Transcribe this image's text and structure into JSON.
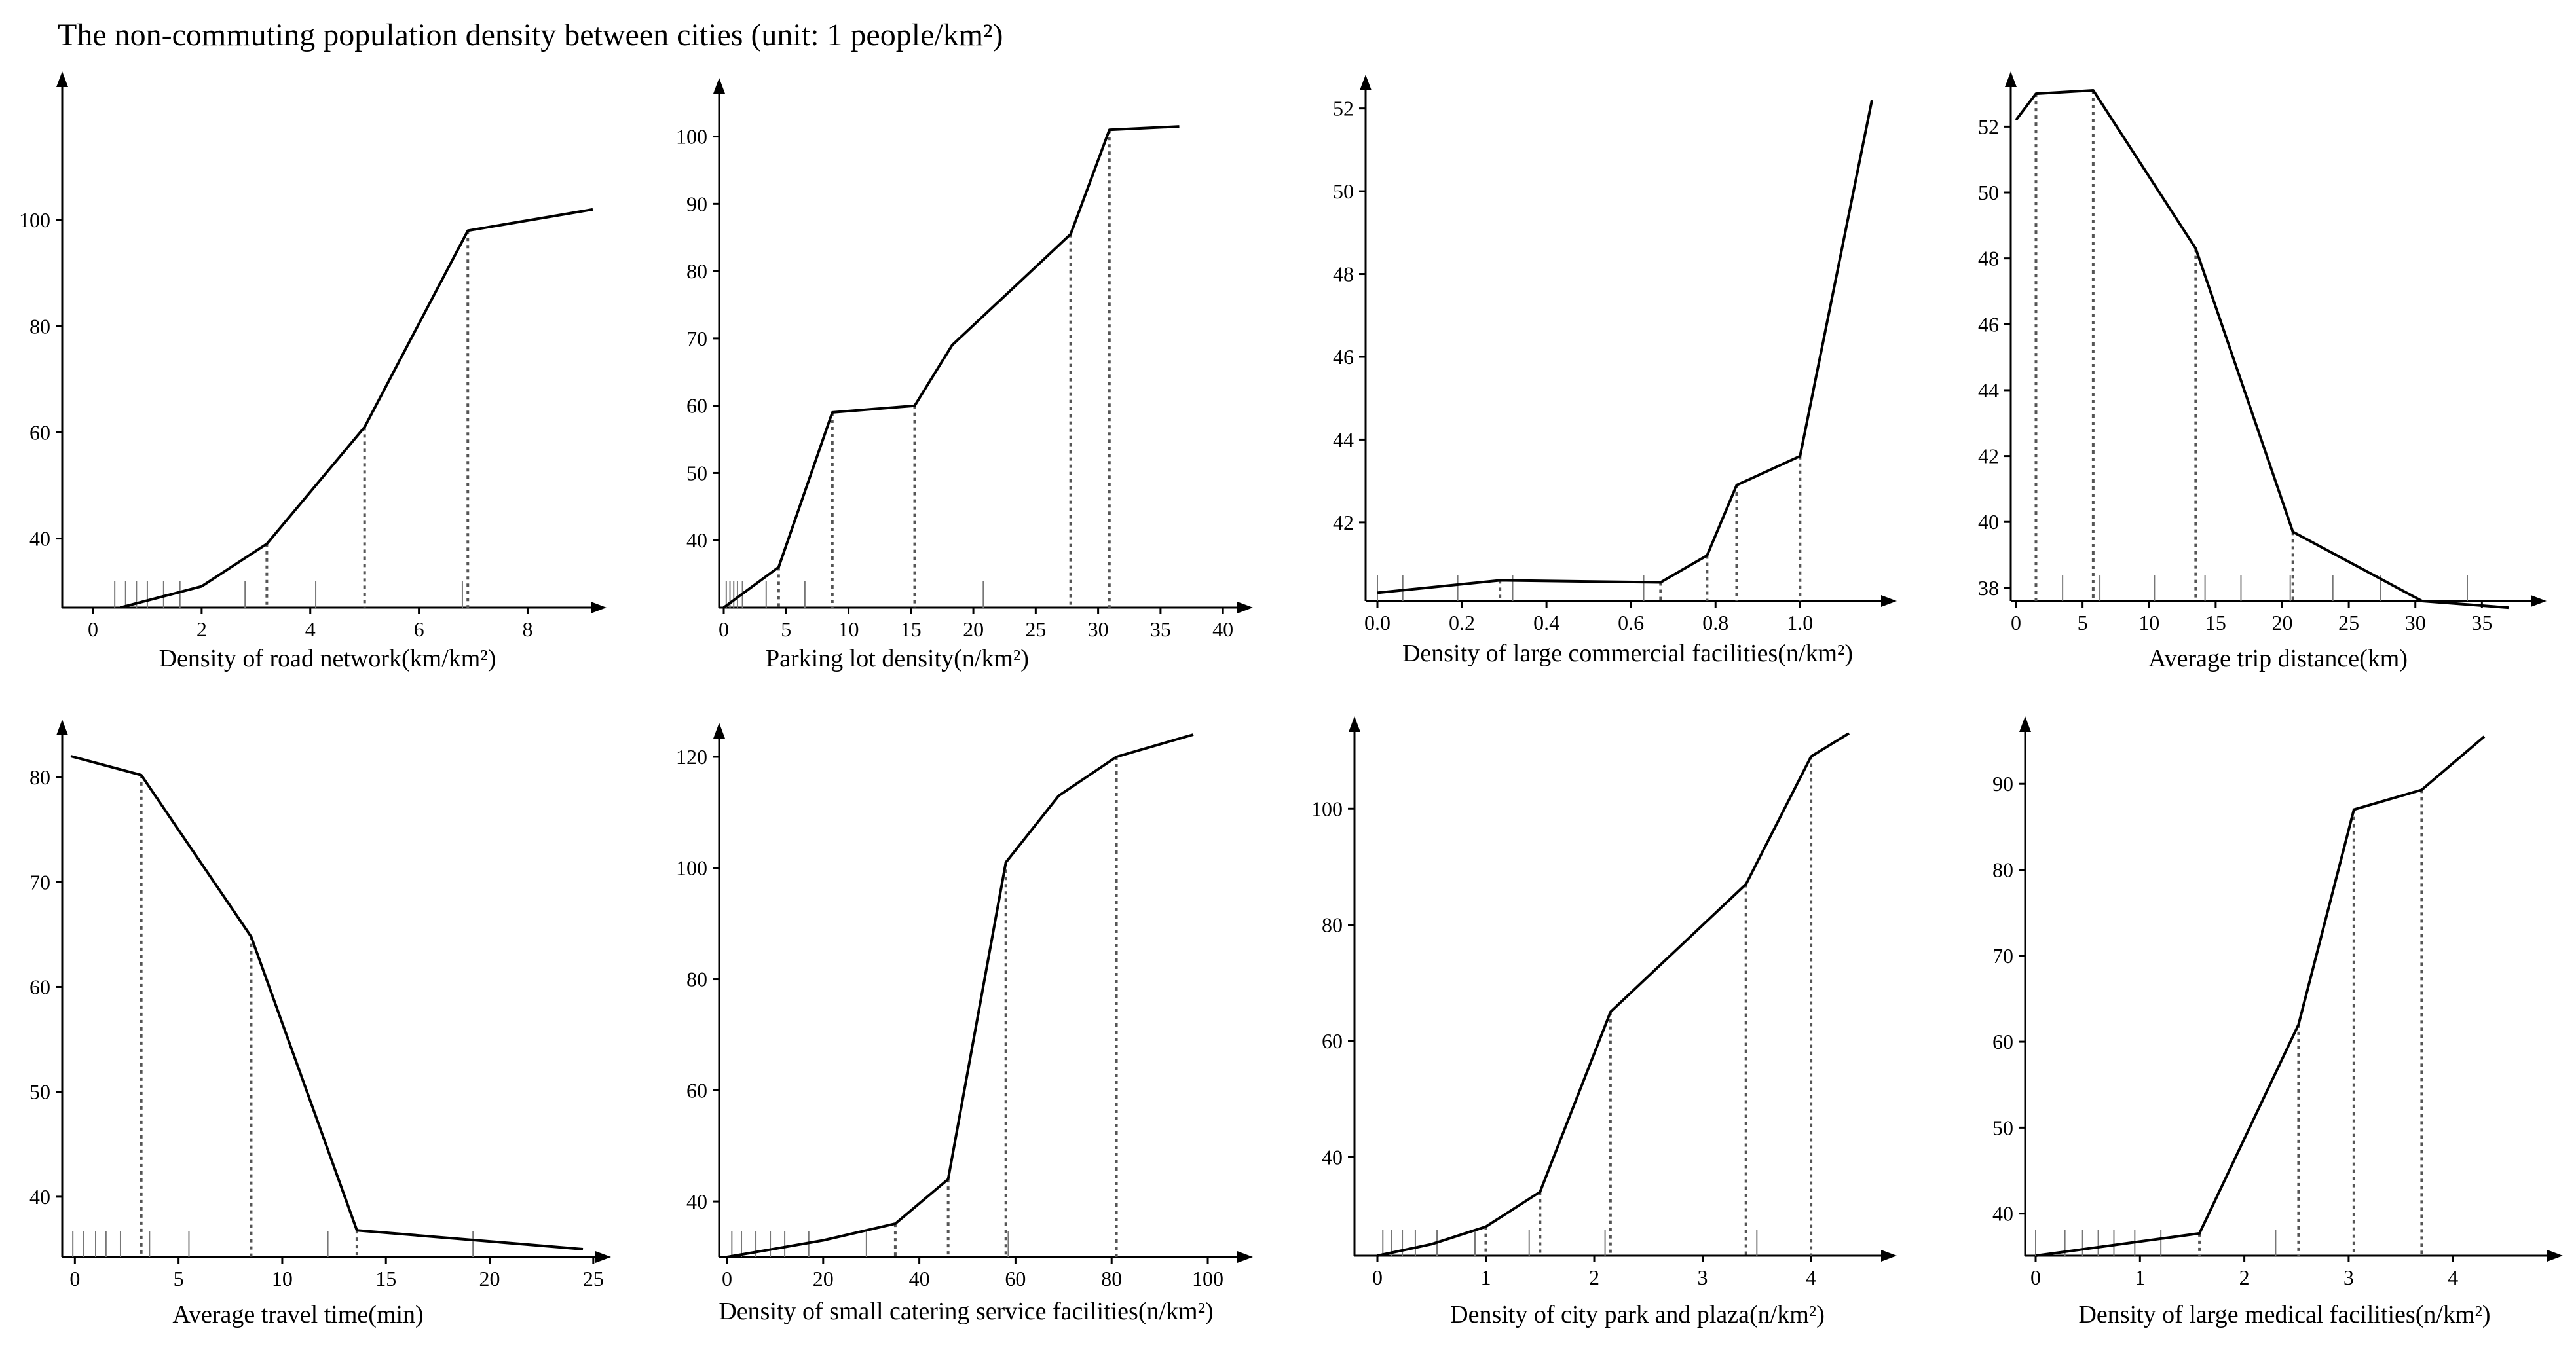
{
  "title": "The non-commuting population density between cities (unit: 1 people/km²)",
  "chart_data": [
    {
      "type": "line",
      "xlabel": "Density of road network(km/km²)",
      "ylabel": "",
      "xlim": [
        0,
        9.2
      ],
      "ylim": [
        27,
        110
      ],
      "xticks": [
        0,
        2,
        4,
        6,
        8
      ],
      "xtick_labels": [
        "0",
        "2",
        "4",
        "6",
        "8"
      ],
      "yticks": [
        40,
        60,
        80,
        100
      ],
      "ytick_labels": [
        "40",
        "60",
        "80",
        "100"
      ],
      "x": [
        0.5,
        2.0,
        3.2,
        5.0,
        6.9,
        9.2
      ],
      "y": [
        27,
        31,
        39,
        61,
        98,
        102
      ],
      "drop_lines": [
        3.2,
        5.0,
        6.9
      ],
      "rug": [
        0.4,
        0.6,
        0.8,
        1.0,
        1.3,
        1.6,
        2.8,
        4.1,
        6.8
      ]
    },
    {
      "type": "line",
      "xlabel": "Parking lot density(n/km²)",
      "ylabel": "",
      "xlim": [
        0,
        37
      ],
      "ylim": [
        30,
        102
      ],
      "xticks": [
        0,
        5,
        10,
        15,
        20,
        25,
        30,
        35,
        40
      ],
      "xtick_labels": [
        "0",
        "5",
        "10",
        "15",
        "20",
        "25",
        "30",
        "35",
        "40"
      ],
      "yticks": [
        40,
        50,
        60,
        70,
        80,
        90,
        100
      ],
      "ytick_labels": [
        "40",
        "50",
        "60",
        "70",
        "80",
        "90",
        "100"
      ],
      "x": [
        0,
        4.4,
        8.7,
        15.3,
        18.3,
        27.8,
        30.9,
        36.5
      ],
      "y": [
        30,
        36,
        59,
        60,
        69,
        85.5,
        101,
        101.5
      ],
      "drop_lines": [
        4.4,
        8.7,
        15.3,
        27.8,
        30.9
      ],
      "rug": [
        0.2,
        0.5,
        0.8,
        1.1,
        1.5,
        3.4,
        6.5,
        20.8
      ]
    },
    {
      "type": "line",
      "xlabel": "Density of large commercial facilities(n/km²)",
      "ylabel": "",
      "xlim": [
        0,
        1.17
      ],
      "ylim": [
        40.1,
        52.2
      ],
      "xticks": [
        0.0,
        0.2,
        0.4,
        0.6,
        0.8,
        1.0
      ],
      "xtick_labels": [
        "0.0",
        "0.2",
        "0.4",
        "0.6",
        "0.8",
        "1.0"
      ],
      "yticks": [
        42,
        44,
        46,
        48,
        50,
        52
      ],
      "ytick_labels": [
        "42",
        "44",
        "46",
        "48",
        "50",
        "52"
      ],
      "x": [
        0.0,
        0.29,
        0.67,
        0.78,
        0.85,
        1.0,
        1.17
      ],
      "y": [
        40.3,
        40.6,
        40.55,
        41.2,
        42.9,
        43.6,
        52.2
      ],
      "drop_lines": [
        0.29,
        0.67,
        0.78,
        0.85,
        1.0
      ],
      "rug": [
        0.0,
        0.06,
        0.19,
        0.32,
        0.63
      ]
    },
    {
      "type": "line",
      "xlabel": "Average trip distance(km)",
      "ylabel": "",
      "xlim": [
        0,
        37
      ],
      "ylim": [
        37.6,
        53.2
      ],
      "xticks": [
        0,
        5,
        10,
        15,
        20,
        25,
        30,
        35
      ],
      "xtick_labels": [
        "0",
        "5",
        "10",
        "15",
        "20",
        "25",
        "30",
        "35"
      ],
      "yticks": [
        38,
        40,
        42,
        44,
        46,
        48,
        50,
        52
      ],
      "ytick_labels": [
        "38",
        "40",
        "42",
        "44",
        "46",
        "48",
        "50",
        "52"
      ],
      "x": [
        0,
        1.5,
        5.8,
        13.5,
        20.8,
        30.5,
        37
      ],
      "y": [
        52.2,
        53.0,
        53.1,
        48.3,
        39.7,
        37.6,
        37.4
      ],
      "drop_lines": [
        1.5,
        5.8,
        13.5,
        20.8,
        30.5
      ],
      "rug": [
        3.5,
        6.3,
        10.4,
        14.2,
        16.9,
        20.6,
        23.8,
        27.4,
        33.9
      ]
    },
    {
      "type": "line",
      "xlabel": "Average travel time(min)",
      "ylabel": "",
      "xlim": [
        -0.2,
        24.5
      ],
      "ylim": [
        35,
        82
      ],
      "xticks": [
        0,
        5,
        10,
        15,
        20,
        25
      ],
      "xtick_labels": [
        "0",
        "5",
        "10",
        "15",
        "20",
        "25"
      ],
      "yticks": [
        40,
        50,
        60,
        70,
        80
      ],
      "ytick_labels": [
        "40",
        "50",
        "60",
        "70",
        "80"
      ],
      "x": [
        -0.2,
        3.2,
        8.5,
        13.6,
        24.5
      ],
      "y": [
        82,
        80.2,
        64.8,
        36.8,
        35
      ],
      "drop_lines": [
        3.2,
        8.5,
        13.6
      ],
      "rug": [
        -0.1,
        0.4,
        1.0,
        1.5,
        2.2,
        3.6,
        5.5,
        12.2,
        19.2
      ]
    },
    {
      "type": "line",
      "xlabel": "Density of small catering service facilities(n/km²)",
      "ylabel": "",
      "xlim": [
        0,
        97
      ],
      "ylim": [
        30,
        124
      ],
      "xticks": [
        0,
        20,
        40,
        60,
        80,
        100
      ],
      "xtick_labels": [
        "0",
        "20",
        "40",
        "60",
        "80",
        "100"
      ],
      "yticks": [
        40,
        60,
        80,
        100,
        120
      ],
      "ytick_labels": [
        "40",
        "60",
        "80",
        "100",
        "120"
      ],
      "x": [
        0,
        10,
        20,
        35,
        46,
        58,
        69,
        81,
        95,
        97
      ],
      "y": [
        30,
        31.5,
        33,
        36,
        44,
        101,
        113,
        120,
        123.5,
        124
      ],
      "drop_lines": [
        35,
        46,
        58,
        81
      ],
      "rug": [
        1,
        3,
        6,
        9,
        12,
        17,
        29,
        58.5
      ]
    },
    {
      "type": "line",
      "xlabel": "Density of city park and plaza(n/km²)",
      "ylabel": "",
      "xlim": [
        0,
        4.35
      ],
      "ylim": [
        23,
        113
      ],
      "xticks": [
        0,
        1,
        2,
        3,
        4
      ],
      "xtick_labels": [
        "0",
        "1",
        "2",
        "3",
        "4"
      ],
      "yticks": [
        40,
        60,
        80,
        100
      ],
      "ytick_labels": [
        "40",
        "60",
        "80",
        "100"
      ],
      "x": [
        0,
        0.5,
        1.0,
        1.5,
        2.15,
        3.4,
        4.0,
        4.35
      ],
      "y": [
        23,
        25,
        28,
        34,
        65,
        87,
        109,
        113
      ],
      "drop_lines": [
        1.0,
        1.5,
        2.15,
        3.4,
        4.0
      ],
      "rug": [
        0.05,
        0.13,
        0.23,
        0.35,
        0.55,
        0.9,
        1.4,
        2.1,
        3.5
      ]
    },
    {
      "type": "line",
      "xlabel": "Density of large medical facilities(n/km²)",
      "ylabel": "",
      "xlim": [
        0,
        4.3
      ],
      "ylim": [
        35.1,
        95.5
      ],
      "xticks": [
        0,
        1,
        2,
        3,
        4
      ],
      "xtick_labels": [
        "0",
        "1",
        "2",
        "3",
        "4"
      ],
      "yticks": [
        40,
        50,
        60,
        70,
        80,
        90
      ],
      "ytick_labels": [
        "40",
        "50",
        "60",
        "70",
        "80",
        "90"
      ],
      "x": [
        0,
        1.57,
        2.52,
        3.05,
        3.7,
        4.3
      ],
      "y": [
        35.1,
        37.7,
        62,
        87,
        89.3,
        95.5
      ],
      "drop_lines": [
        1.57,
        2.52,
        3.05,
        3.7
      ],
      "rug": [
        0,
        0.28,
        0.45,
        0.6,
        0.75,
        0.95,
        1.2,
        2.3
      ]
    }
  ]
}
